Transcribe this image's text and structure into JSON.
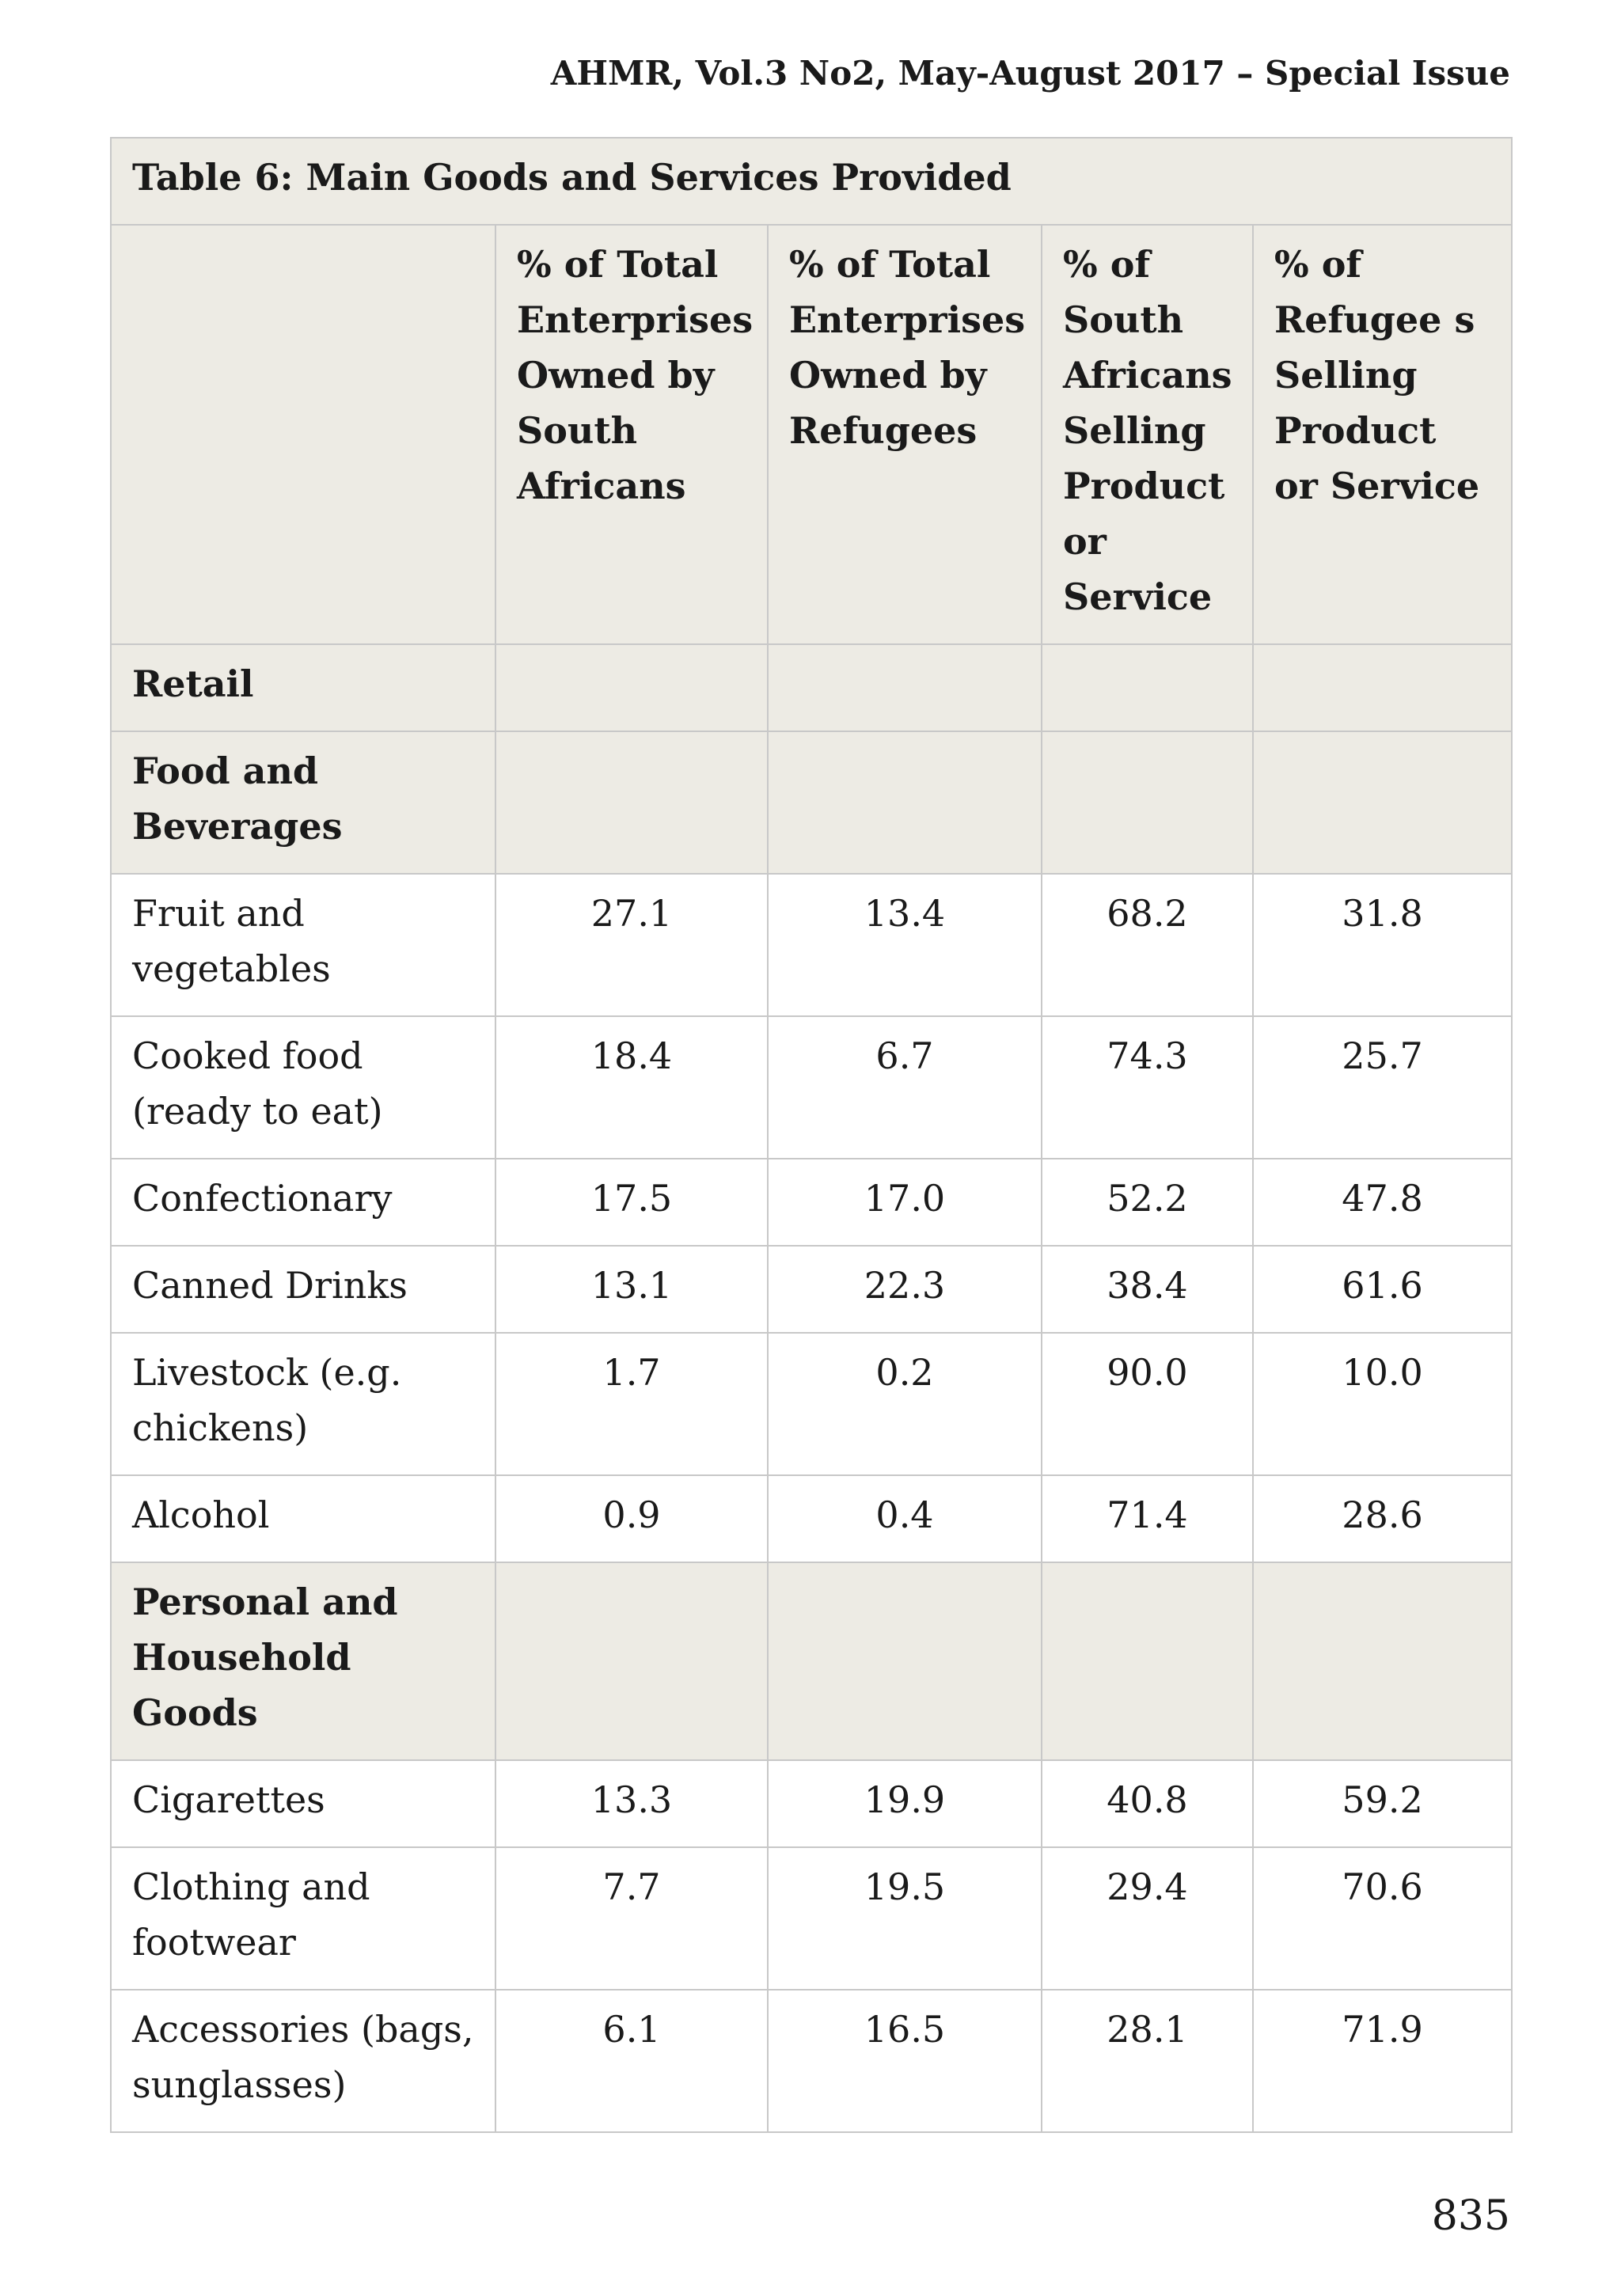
{
  "header": {
    "running_head": "AHMR, Vol.3 No2, May-August 2017 – Special Issue"
  },
  "table": {
    "caption": "Table 6: Main Goods and Services Provided",
    "columns": [
      "",
      "% of Total Enterprises Owned by South Africans",
      "% of Total Enterprises Owned by Refugees",
      "% of South Africans Selling Product or Service",
      "% of Refugee s Selling Product or Service"
    ],
    "sections": {
      "retail": "Retail",
      "food": "Food and Beverages",
      "personal": "Personal and Household Goods"
    },
    "rows": [
      {
        "label": "Fruit and vegetables",
        "values": [
          "27.1",
          "13.4",
          "68.2",
          "31.8"
        ]
      },
      {
        "label": "Cooked food (ready to eat)",
        "values": [
          "18.4",
          "6.7",
          "74.3",
          "25.7"
        ]
      },
      {
        "label": "Confectionary",
        "values": [
          "17.5",
          "17.0",
          "52.2",
          "47.8"
        ]
      },
      {
        "label": "Canned Drinks",
        "values": [
          "13.1",
          "22.3",
          "38.4",
          "61.6"
        ]
      },
      {
        "label": "Livestock (e.g. chickens)",
        "values": [
          "1.7",
          "0.2",
          "90.0",
          "10.0"
        ]
      },
      {
        "label": "Alcohol",
        "values": [
          "0.9",
          "0.4",
          "71.4",
          "28.6"
        ]
      },
      {
        "label": "Cigarettes",
        "values": [
          "13.3",
          "19.9",
          "40.8",
          "59.2"
        ]
      },
      {
        "label": "Clothing and footwear",
        "values": [
          "7.7",
          "19.5",
          "29.4",
          "70.6"
        ]
      },
      {
        "label": "Accessories (bags, sunglasses)",
        "values": [
          "6.1",
          "16.5",
          "28.1",
          "71.9"
        ]
      }
    ]
  },
  "footer": {
    "page_number": "835"
  }
}
